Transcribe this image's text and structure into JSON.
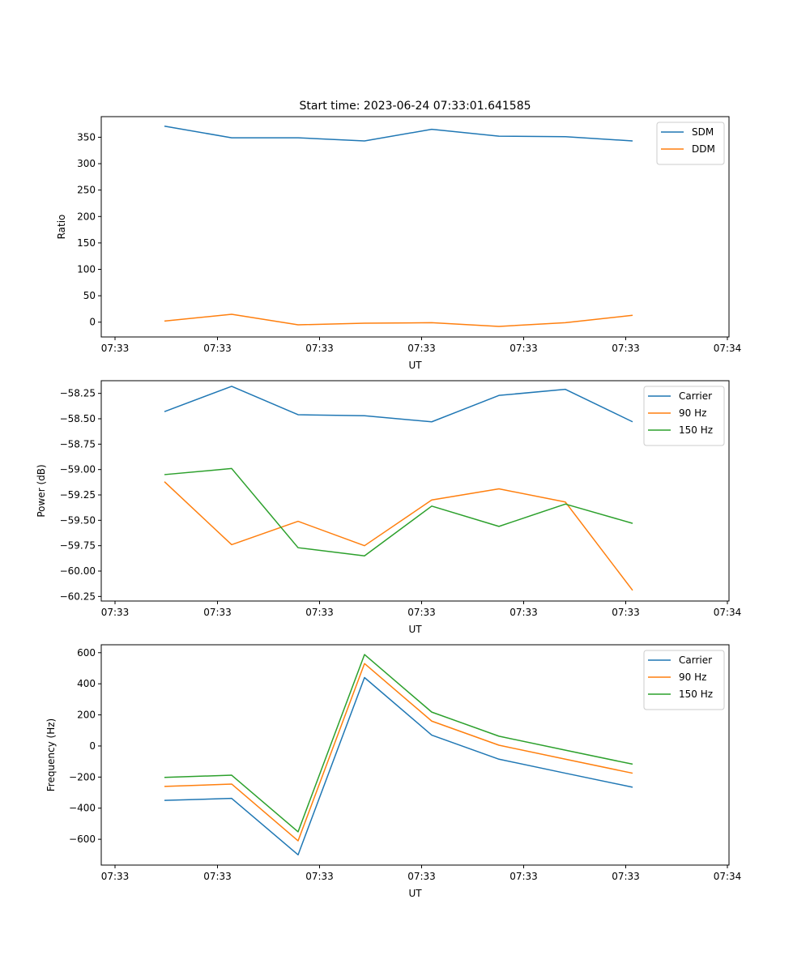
{
  "figure": {
    "title": "Start time: 2023-06-24 07:33:01.641585"
  },
  "chart_data": [
    {
      "type": "line",
      "xlabel": "UT",
      "ylabel": "Ratio",
      "x_tick_labels": [
        "07:33",
        "07:33",
        "07:33",
        "07:33",
        "07:33",
        "07:33",
        "07:34"
      ],
      "y_ticks": [
        0,
        50,
        100,
        150,
        200,
        250,
        300,
        350
      ],
      "ylim": [
        -28,
        389
      ],
      "grid": false,
      "legend": "top-right",
      "series": [
        {
          "name": "SDM",
          "color": "#1f77b4",
          "values": [
            371,
            349,
            349,
            343,
            365,
            352,
            351,
            343
          ]
        },
        {
          "name": "DDM",
          "color": "#ff7f0e",
          "values": [
            2,
            15,
            -5,
            -2,
            -1,
            -8,
            -1,
            13
          ]
        }
      ]
    },
    {
      "type": "line",
      "xlabel": "UT",
      "ylabel": "Power (dB)",
      "x_tick_labels": [
        "07:33",
        "07:33",
        "07:33",
        "07:33",
        "07:33",
        "07:33",
        "07:34"
      ],
      "y_ticks": [
        -60.25,
        -60.0,
        -59.75,
        -59.5,
        -59.25,
        -59.0,
        -58.75,
        -58.5,
        -58.25
      ],
      "y_tick_labels": [
        "−60.25",
        "−60.00",
        "−59.75",
        "−59.50",
        "−59.25",
        "−59.00",
        "−58.75",
        "−58.50",
        "−58.25"
      ],
      "ylim": [
        -60.295,
        -58.125
      ],
      "grid": false,
      "legend": "top-right",
      "series": [
        {
          "name": "Carrier",
          "color": "#1f77b4",
          "values": [
            -58.43,
            -58.18,
            -58.46,
            -58.47,
            -58.53,
            -58.27,
            -58.21,
            -58.53
          ]
        },
        {
          "name": "90 Hz",
          "color": "#ff7f0e",
          "values": [
            -59.12,
            -59.74,
            -59.51,
            -59.75,
            -59.3,
            -59.19,
            -59.32,
            -60.19
          ]
        },
        {
          "name": "150 Hz",
          "color": "#2ca02c",
          "values": [
            -59.05,
            -58.99,
            -59.77,
            -59.85,
            -59.36,
            -59.56,
            -59.34,
            -59.53
          ]
        }
      ]
    },
    {
      "type": "line",
      "xlabel": "UT",
      "ylabel": "Frequency (Hz)",
      "x_tick_labels": [
        "07:33",
        "07:33",
        "07:33",
        "07:33",
        "07:33",
        "07:33",
        "07:34"
      ],
      "y_ticks": [
        -600,
        -400,
        -200,
        0,
        200,
        400,
        600
      ],
      "y_tick_labels": [
        "−600",
        "−400",
        "−200",
        "0",
        "200",
        "400",
        "600"
      ],
      "ylim": [
        -766,
        651
      ],
      "grid": false,
      "legend": "top-right",
      "series": [
        {
          "name": "Carrier",
          "color": "#1f77b4",
          "values": [
            -350,
            -337,
            -700,
            440,
            70,
            -85,
            -175,
            -265
          ]
        },
        {
          "name": "90 Hz",
          "color": "#ff7f0e",
          "values": [
            -260,
            -245,
            -610,
            530,
            160,
            5,
            -85,
            -175
          ]
        },
        {
          "name": "150 Hz",
          "color": "#2ca02c",
          "values": [
            -202,
            -188,
            -552,
            588,
            218,
            63,
            -27,
            -117
          ]
        }
      ]
    }
  ]
}
